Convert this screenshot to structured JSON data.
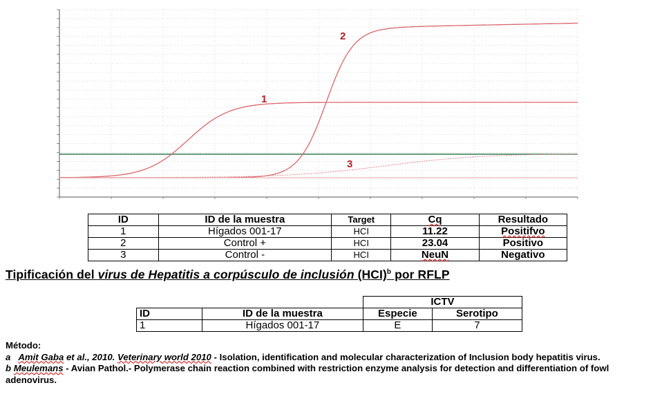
{
  "chart_data": {
    "type": "line",
    "title": "",
    "xlabel": "",
    "ylabel": "",
    "series": [
      {
        "name": "",
        "label": "1",
        "color": "#d9656b"
      },
      {
        "name": "",
        "label": "2",
        "color": "#d9656b"
      },
      {
        "name": "",
        "label": "3",
        "color": "#e58f93"
      }
    ],
    "threshold": {
      "color": "#2e7d4f"
    },
    "grid": true
  },
  "result_table": {
    "headers": [
      "ID",
      "ID de la muestra",
      "Target",
      "Cq",
      "Resultado"
    ],
    "rows": [
      [
        "1",
        "Hígados 001-17",
        "HCI",
        "11.22",
        "Positifvo"
      ],
      [
        "2",
        "Control +",
        "HCI",
        "23.04",
        "Positivo"
      ],
      [
        "3",
        "Control -",
        "HCI",
        "NeuN",
        "Negativo"
      ]
    ]
  },
  "typing": {
    "title_prefix": "Tipificación del ",
    "title_italic": "virus de Hepatitis a corpúsculo de inclusión",
    "title_suffix": " (HCI)",
    "title_sup": "b",
    "title_end": " por RFLP"
  },
  "ictv_table": {
    "group_header": "ICTV",
    "headers": [
      "ID",
      "ID de la muestra",
      "Especie",
      "Serotipo"
    ],
    "rows": [
      [
        "1",
        "Hígados 001-17",
        "E",
        "7"
      ]
    ]
  },
  "method": {
    "label": "Método:",
    "ref_a": {
      "letter": "a",
      "authors": "Amit Gaba",
      "etal": "et al., 2010.",
      "journal": "Veterinary world 2010",
      "rest": " - Isolation, identification and molecular characterization of Inclusion body hepatitis virus."
    },
    "ref_b": {
      "letter": "b",
      "authors": "Meulemans",
      "rest": " - Avian Pathol.- Polymerase chain reaction combined with restriction enzyme analysis for detection and differentiation of fowl adenovirus."
    }
  }
}
